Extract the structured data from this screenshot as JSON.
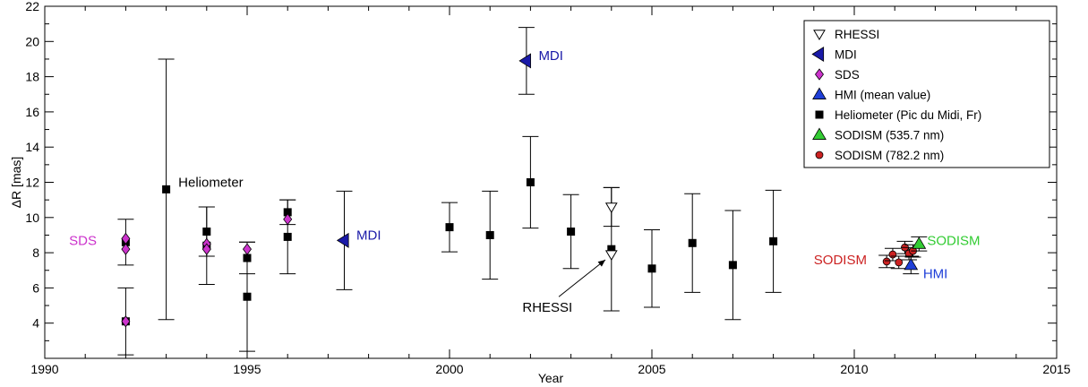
{
  "chart_data": {
    "type": "scatter",
    "xlabel": "Year",
    "ylabel": "ΔR [mas]",
    "xlim": [
      1990,
      2015
    ],
    "ylim": [
      2,
      22
    ],
    "xticks": [
      1990,
      1995,
      2000,
      2005,
      2010,
      2015
    ],
    "yticks": [
      4,
      6,
      8,
      10,
      12,
      14,
      16,
      18,
      20,
      22
    ],
    "grid": false,
    "legend_position": "top-right",
    "colors": {
      "rhessi": "#ffffff",
      "mdi": "#1a1aa8",
      "sds": "#cc33cc",
      "hmi": "#1f3fd8",
      "heliometer": "#000000",
      "sodism_535": "#33cc33",
      "sodism_782": "#cc2222"
    },
    "series": [
      {
        "name": "RHESSI",
        "marker": "triangle-down-open",
        "points": [
          {
            "x": 2004.0,
            "y": 10.6,
            "err": 1.1
          },
          {
            "x": 2004.0,
            "y": 7.9
          }
        ]
      },
      {
        "name": "MDI",
        "marker": "triangle-left",
        "points": [
          {
            "x": 2001.9,
            "y": 18.9,
            "err": 1.9
          },
          {
            "x": 1997.4,
            "y": 8.7,
            "err": 2.8
          }
        ]
      },
      {
        "name": "SDS",
        "marker": "diamond",
        "points": [
          {
            "x": 1992.0,
            "y": 8.8
          },
          {
            "x": 1992.0,
            "y": 8.2
          },
          {
            "x": 1992.0,
            "y": 4.1
          },
          {
            "x": 1994.0,
            "y": 8.5
          },
          {
            "x": 1994.0,
            "y": 8.2
          },
          {
            "x": 1995.0,
            "y": 8.2
          },
          {
            "x": 1996.0,
            "y": 9.9
          }
        ]
      },
      {
        "name": "HMI (mean value)",
        "marker": "triangle-up",
        "points": [
          {
            "x": 2011.4,
            "y": 7.3,
            "err": 0.5
          }
        ]
      },
      {
        "name": "Heliometer (Pic du Midi, Fr)",
        "marker": "square",
        "points": [
          {
            "x": 1992.0,
            "y": 8.6,
            "err": 1.3
          },
          {
            "x": 1992.0,
            "y": 4.1,
            "err": 1.9
          },
          {
            "x": 1993.0,
            "y": 11.6,
            "err": 7.4
          },
          {
            "x": 1994.0,
            "y": 9.2,
            "err": 1.4
          },
          {
            "x": 1994.0,
            "y": 8.4,
            "err": 2.2
          },
          {
            "x": 1995.0,
            "y": 5.5,
            "err": 3.1
          },
          {
            "x": 1995.0,
            "y": 7.7,
            "err": 0.9
          },
          {
            "x": 1996.0,
            "y": 8.9,
            "err": 2.1
          },
          {
            "x": 1996.0,
            "y": 10.3,
            "err": 0.7
          },
          {
            "x": 2000.0,
            "y": 9.45,
            "err": 1.4
          },
          {
            "x": 2001.0,
            "y": 9.0,
            "err": 2.5
          },
          {
            "x": 2002.0,
            "y": 12.0,
            "err": 2.6
          },
          {
            "x": 2003.0,
            "y": 9.2,
            "err": 2.1
          },
          {
            "x": 2004.0,
            "y": 8.2,
            "err": 3.5
          },
          {
            "x": 2005.0,
            "y": 7.1,
            "err": 2.2
          },
          {
            "x": 2006.0,
            "y": 8.55,
            "err": 2.8
          },
          {
            "x": 2007.0,
            "y": 7.3,
            "err": 3.1
          },
          {
            "x": 2008.0,
            "y": 8.65,
            "err": 2.9
          }
        ]
      },
      {
        "name": "SODISM (535.7 nm)",
        "marker": "triangle-up",
        "points": [
          {
            "x": 2011.6,
            "y": 8.5,
            "err": 0.4
          }
        ]
      },
      {
        "name": "SODISM (782.2 nm)",
        "marker": "circle",
        "points": [
          {
            "x": 2010.8,
            "y": 7.5,
            "err": 0.35
          },
          {
            "x": 2010.95,
            "y": 7.9,
            "err": 0.35
          },
          {
            "x": 2011.1,
            "y": 7.45,
            "err": 0.35
          },
          {
            "x": 2011.25,
            "y": 8.3,
            "err": 0.35
          },
          {
            "x": 2011.35,
            "y": 7.95,
            "err": 0.35
          },
          {
            "x": 2011.45,
            "y": 8.1,
            "err": 0.35
          }
        ]
      }
    ],
    "annotations": [
      {
        "text": "Heliometer",
        "x": 1993.3,
        "y": 12.0,
        "color": "#000000"
      },
      {
        "text": "SDS",
        "x": 1990.6,
        "y": 8.7,
        "color": "#cc33cc"
      },
      {
        "text": "MDI",
        "x": 2002.2,
        "y": 19.2,
        "color": "#1a1aa8"
      },
      {
        "text": "MDI",
        "x": 1997.7,
        "y": 9.0,
        "color": "#1a1aa8"
      },
      {
        "text": "RHESSI",
        "x": 2001.8,
        "y": 4.9,
        "color": "#000000"
      },
      {
        "text": "SODISM",
        "x": 2009.0,
        "y": 7.6,
        "color": "#cc2222"
      },
      {
        "text": "SODISM",
        "x": 2011.8,
        "y": 8.7,
        "color": "#33cc33"
      },
      {
        "text": "HMI",
        "x": 2011.7,
        "y": 6.8,
        "color": "#1f3fd8"
      }
    ]
  }
}
